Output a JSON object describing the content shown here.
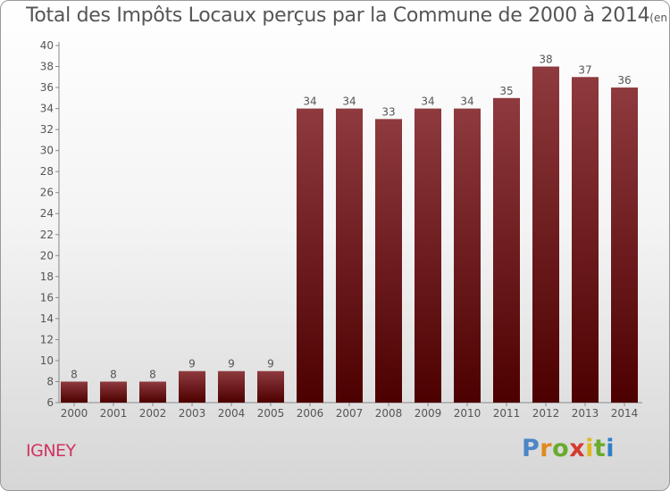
{
  "title": {
    "main": "Total des Impôts Locaux perçus par la Commune de 2000 à 2014",
    "unit": "(en milliers d'€)"
  },
  "commune": "IGNEY",
  "logo": {
    "text": "Proxiti",
    "letter_colors": [
      "#4a86c8",
      "#e08a1e",
      "#6aab2e",
      "#d63a2f",
      "#e0b91e",
      "#6aab2e",
      "#2f7fc8"
    ]
  },
  "colors": {
    "bar_top": "#8e3a3e",
    "bar_bottom": "#4d0000",
    "text": "#555555",
    "commune": "#d0335f"
  },
  "chart_data": {
    "type": "bar",
    "categories": [
      "2000",
      "2001",
      "2002",
      "2003",
      "2004",
      "2005",
      "2006",
      "2007",
      "2008",
      "2009",
      "2010",
      "2011",
      "2012",
      "2013",
      "2014"
    ],
    "values": [
      8,
      8,
      8,
      9,
      9,
      9,
      34,
      34,
      33,
      34,
      34,
      35,
      38,
      37,
      36
    ],
    "title": "Total des Impôts Locaux perçus par la Commune de 2000 à 2014",
    "xlabel": "",
    "ylabel": "",
    "ylim": [
      6,
      40
    ],
    "yticks": [
      6,
      8,
      10,
      12,
      14,
      16,
      18,
      20,
      22,
      24,
      26,
      28,
      30,
      32,
      34,
      36,
      38,
      40
    ],
    "grid": false,
    "data_labels": true
  }
}
